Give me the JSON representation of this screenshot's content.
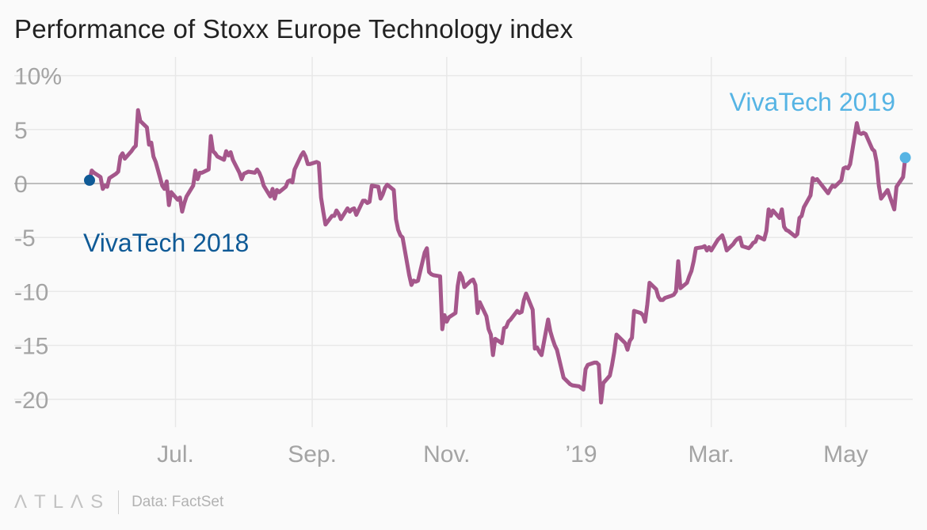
{
  "title": "Performance of Stoxx Europe Technology index",
  "footer": {
    "logo": "ΛTLΛS",
    "source": "Data: FactSet"
  },
  "colors": {
    "line": "#a5578b",
    "start_marker": "#0f5a96",
    "end_marker": "#56b4e4",
    "grid": "#e8e8e8",
    "zero_line": "#9a9a9a"
  },
  "chart_data": {
    "type": "line",
    "title": "Performance of Stoxx Europe Technology index",
    "xlabel": "",
    "ylabel": "",
    "x_range": [
      "2018-05-23",
      "2019-05-17"
    ],
    "ylim": [
      -22,
      10
    ],
    "y_ticks": [
      10,
      5,
      0,
      -5,
      -10,
      -15,
      -20
    ],
    "y_tick_labels": [
      "10%",
      "5",
      "0",
      "-5",
      "-10",
      "-15",
      "-20"
    ],
    "x_ticks": [
      "2018-07-01",
      "2018-09-01",
      "2018-11-01",
      "2019-01-01",
      "2019-03-01",
      "2019-05-01"
    ],
    "x_tick_labels": [
      "Jul.",
      "Sep.",
      "Nov.",
      "’19",
      "Mar.",
      "May"
    ],
    "grid": true,
    "series": [
      {
        "points": [
          [
            "2018-05-23",
            0.3
          ],
          [
            "2018-05-24",
            1.2
          ],
          [
            "2018-05-25",
            1.0
          ],
          [
            "2018-05-28",
            0.6
          ],
          [
            "2018-05-29",
            -0.5
          ],
          [
            "2018-05-30",
            -0.2
          ],
          [
            "2018-05-31",
            -0.3
          ],
          [
            "2018-06-01",
            0.5
          ],
          [
            "2018-06-04",
            0.9
          ],
          [
            "2018-06-05",
            1.1
          ],
          [
            "2018-06-06",
            2.5
          ],
          [
            "2018-06-07",
            2.8
          ],
          [
            "2018-06-08",
            2.3
          ],
          [
            "2018-06-11",
            3.0
          ],
          [
            "2018-06-12",
            3.3
          ],
          [
            "2018-06-13",
            3.5
          ],
          [
            "2018-06-14",
            6.8
          ],
          [
            "2018-06-15",
            5.8
          ],
          [
            "2018-06-18",
            5.2
          ],
          [
            "2018-06-19",
            3.6
          ],
          [
            "2018-06-20",
            3.8
          ],
          [
            "2018-06-21",
            2.5
          ],
          [
            "2018-06-22",
            2.0
          ],
          [
            "2018-06-25",
            -0.2
          ],
          [
            "2018-06-26",
            -0.5
          ],
          [
            "2018-06-27",
            0.2
          ],
          [
            "2018-06-28",
            -2.0
          ],
          [
            "2018-06-29",
            -0.8
          ],
          [
            "2018-07-02",
            -1.5
          ],
          [
            "2018-07-03",
            -1.3
          ],
          [
            "2018-07-04",
            -2.6
          ],
          [
            "2018-07-05",
            -1.8
          ],
          [
            "2018-07-06",
            -1.2
          ],
          [
            "2018-07-09",
            -0.2
          ],
          [
            "2018-07-10",
            1.2
          ],
          [
            "2018-07-11",
            0.4
          ],
          [
            "2018-07-12",
            1.0
          ],
          [
            "2018-07-13",
            1.0
          ],
          [
            "2018-07-16",
            1.3
          ],
          [
            "2018-07-17",
            4.4
          ],
          [
            "2018-07-18",
            3.0
          ],
          [
            "2018-07-19",
            2.8
          ],
          [
            "2018-07-20",
            2.5
          ],
          [
            "2018-07-23",
            2.2
          ],
          [
            "2018-07-24",
            3.0
          ],
          [
            "2018-07-25",
            2.6
          ],
          [
            "2018-07-26",
            2.9
          ],
          [
            "2018-07-27",
            2.2
          ],
          [
            "2018-07-30",
            1.0
          ],
          [
            "2018-07-31",
            0.4
          ],
          [
            "2018-08-01",
            0.9
          ],
          [
            "2018-08-02",
            1.0
          ],
          [
            "2018-08-03",
            1.1
          ],
          [
            "2018-08-06",
            1.0
          ],
          [
            "2018-08-07",
            1.3
          ],
          [
            "2018-08-08",
            1.0
          ],
          [
            "2018-08-09",
            0.5
          ],
          [
            "2018-08-10",
            -0.2
          ],
          [
            "2018-08-13",
            -1.2
          ],
          [
            "2018-08-14",
            -0.5
          ],
          [
            "2018-08-15",
            -1.4
          ],
          [
            "2018-08-16",
            -0.6
          ],
          [
            "2018-08-17",
            -0.8
          ],
          [
            "2018-08-20",
            -0.3
          ],
          [
            "2018-08-21",
            0.2
          ],
          [
            "2018-08-22",
            0.3
          ],
          [
            "2018-08-23",
            0.1
          ],
          [
            "2018-08-24",
            1.3
          ],
          [
            "2018-08-27",
            2.6
          ],
          [
            "2018-08-28",
            2.9
          ],
          [
            "2018-08-29",
            2.5
          ],
          [
            "2018-08-30",
            1.8
          ],
          [
            "2018-08-31",
            1.8
          ],
          [
            "2018-09-03",
            2.0
          ],
          [
            "2018-09-04",
            1.9
          ],
          [
            "2018-09-05",
            -1.3
          ],
          [
            "2018-09-06",
            -2.6
          ],
          [
            "2018-09-07",
            -3.8
          ],
          [
            "2018-09-10",
            -3.0
          ],
          [
            "2018-09-11",
            -3.0
          ],
          [
            "2018-09-12",
            -2.5
          ],
          [
            "2018-09-13",
            -2.8
          ],
          [
            "2018-09-14",
            -3.3
          ],
          [
            "2018-09-17",
            -2.3
          ],
          [
            "2018-09-18",
            -2.6
          ],
          [
            "2018-09-19",
            -2.4
          ],
          [
            "2018-09-20",
            -2.3
          ],
          [
            "2018-09-21",
            -2.9
          ],
          [
            "2018-09-24",
            -1.6
          ],
          [
            "2018-09-25",
            -1.6
          ],
          [
            "2018-09-26",
            -1.8
          ],
          [
            "2018-09-27",
            -1.7
          ],
          [
            "2018-09-28",
            -0.2
          ],
          [
            "2018-10-01",
            -0.3
          ],
          [
            "2018-10-02",
            -1.4
          ],
          [
            "2018-10-03",
            -1.0
          ],
          [
            "2018-10-04",
            -0.4
          ],
          [
            "2018-10-05",
            -0.1
          ],
          [
            "2018-10-08",
            -0.6
          ],
          [
            "2018-10-09",
            -3.3
          ],
          [
            "2018-10-10",
            -4.3
          ],
          [
            "2018-10-11",
            -4.8
          ],
          [
            "2018-10-12",
            -5.0
          ],
          [
            "2018-10-15",
            -8.5
          ],
          [
            "2018-10-16",
            -9.4
          ],
          [
            "2018-10-17",
            -9.0
          ],
          [
            "2018-10-18",
            -9.1
          ],
          [
            "2018-10-19",
            -9.0
          ],
          [
            "2018-10-22",
            -6.4
          ],
          [
            "2018-10-23",
            -6.0
          ],
          [
            "2018-10-24",
            -8.2
          ],
          [
            "2018-10-25",
            -8.4
          ],
          [
            "2018-10-26",
            -8.5
          ],
          [
            "2018-10-29",
            -8.6
          ],
          [
            "2018-10-30",
            -13.5
          ],
          [
            "2018-10-31",
            -12.2
          ],
          [
            "2018-11-01",
            -12.8
          ],
          [
            "2018-11-02",
            -12.4
          ],
          [
            "2018-11-05",
            -12.0
          ],
          [
            "2018-11-06",
            -9.5
          ],
          [
            "2018-11-07",
            -8.3
          ],
          [
            "2018-11-08",
            -8.7
          ],
          [
            "2018-11-09",
            -9.6
          ],
          [
            "2018-11-12",
            -9.0
          ],
          [
            "2018-11-13",
            -8.9
          ],
          [
            "2018-11-14",
            -9.4
          ],
          [
            "2018-11-15",
            -12.0
          ],
          [
            "2018-11-16",
            -11.0
          ],
          [
            "2018-11-19",
            -12.3
          ],
          [
            "2018-11-20",
            -13.5
          ],
          [
            "2018-11-21",
            -14.0
          ],
          [
            "2018-11-22",
            -15.9
          ],
          [
            "2018-11-23",
            -14.4
          ],
          [
            "2018-11-26",
            -14.8
          ],
          [
            "2018-11-27",
            -13.4
          ],
          [
            "2018-11-28",
            -13.3
          ],
          [
            "2018-11-29",
            -12.8
          ],
          [
            "2018-11-30",
            -12.6
          ],
          [
            "2018-12-03",
            -11.8
          ],
          [
            "2018-12-04",
            -12.0
          ],
          [
            "2018-12-05",
            -11.9
          ],
          [
            "2018-12-06",
            -10.8
          ],
          [
            "2018-12-07",
            -10.2
          ],
          [
            "2018-12-10",
            -11.7
          ],
          [
            "2018-12-11",
            -15.3
          ],
          [
            "2018-12-12",
            -15.2
          ],
          [
            "2018-12-13",
            -15.6
          ],
          [
            "2018-12-14",
            -15.9
          ],
          [
            "2018-12-17",
            -12.6
          ],
          [
            "2018-12-18",
            -13.7
          ],
          [
            "2018-12-19",
            -14.4
          ],
          [
            "2018-12-20",
            -15.0
          ],
          [
            "2018-12-21",
            -15.4
          ],
          [
            "2018-12-24",
            -18.0
          ],
          [
            "2018-12-27",
            -18.6
          ],
          [
            "2018-12-28",
            -18.7
          ],
          [
            "2018-12-31",
            -18.8
          ],
          [
            "2019-01-02",
            -19.1
          ],
          [
            "2019-01-03",
            -17.2
          ],
          [
            "2019-01-04",
            -16.8
          ],
          [
            "2019-01-07",
            -16.6
          ],
          [
            "2019-01-08",
            -16.6
          ],
          [
            "2019-01-09",
            -16.8
          ],
          [
            "2019-01-10",
            -20.3
          ],
          [
            "2019-01-11",
            -18.5
          ],
          [
            "2019-01-14",
            -17.8
          ],
          [
            "2019-01-15",
            -16.8
          ],
          [
            "2019-01-16",
            -15.6
          ],
          [
            "2019-01-17",
            -14.0
          ],
          [
            "2019-01-18",
            -14.2
          ],
          [
            "2019-01-21",
            -14.8
          ],
          [
            "2019-01-22",
            -15.4
          ],
          [
            "2019-01-23",
            -14.6
          ],
          [
            "2019-01-24",
            -14.3
          ],
          [
            "2019-01-25",
            -11.8
          ],
          [
            "2019-01-28",
            -12.0
          ],
          [
            "2019-01-29",
            -12.2
          ],
          [
            "2019-01-30",
            -12.8
          ],
          [
            "2019-01-31",
            -11.2
          ],
          [
            "2019-02-01",
            -9.2
          ],
          [
            "2019-02-04",
            -9.8
          ],
          [
            "2019-02-05",
            -10.5
          ],
          [
            "2019-02-06",
            -10.8
          ],
          [
            "2019-02-07",
            -10.8
          ],
          [
            "2019-02-08",
            -10.6
          ],
          [
            "2019-02-11",
            -10.4
          ],
          [
            "2019-02-12",
            -10.3
          ],
          [
            "2019-02-13",
            -10.0
          ],
          [
            "2019-02-14",
            -7.2
          ],
          [
            "2019-02-15",
            -9.7
          ],
          [
            "2019-02-18",
            -9.2
          ],
          [
            "2019-02-19",
            -8.6
          ],
          [
            "2019-02-20",
            -8.1
          ],
          [
            "2019-02-21",
            -7.2
          ],
          [
            "2019-02-22",
            -6.0
          ],
          [
            "2019-02-25",
            -5.9
          ],
          [
            "2019-02-26",
            -5.8
          ],
          [
            "2019-02-27",
            -6.2
          ],
          [
            "2019-02-28",
            -5.9
          ],
          [
            "2019-03-01",
            -6.2
          ],
          [
            "2019-03-04",
            -5.2
          ],
          [
            "2019-03-05",
            -5.0
          ],
          [
            "2019-03-06",
            -4.8
          ],
          [
            "2019-03-07",
            -5.4
          ],
          [
            "2019-03-08",
            -6.2
          ],
          [
            "2019-03-11",
            -5.6
          ],
          [
            "2019-03-12",
            -5.3
          ],
          [
            "2019-03-13",
            -5.1
          ],
          [
            "2019-03-14",
            -5.0
          ],
          [
            "2019-03-15",
            -5.8
          ],
          [
            "2019-03-18",
            -6.0
          ],
          [
            "2019-03-19",
            -5.8
          ],
          [
            "2019-03-20",
            -5.5
          ],
          [
            "2019-03-21",
            -5.4
          ],
          [
            "2019-03-22",
            -4.9
          ],
          [
            "2019-03-25",
            -5.2
          ],
          [
            "2019-03-26",
            -4.4
          ],
          [
            "2019-03-27",
            -2.4
          ],
          [
            "2019-03-28",
            -3.0
          ],
          [
            "2019-03-29",
            -2.5
          ],
          [
            "2019-04-01",
            -3.2
          ],
          [
            "2019-04-02",
            -2.4
          ],
          [
            "2019-04-03",
            -4.0
          ],
          [
            "2019-04-04",
            -4.3
          ],
          [
            "2019-04-05",
            -4.4
          ],
          [
            "2019-04-08",
            -4.9
          ],
          [
            "2019-04-09",
            -4.7
          ],
          [
            "2019-04-10",
            -3.2
          ],
          [
            "2019-04-11",
            -3.0
          ],
          [
            "2019-04-12",
            -2.2
          ],
          [
            "2019-04-15",
            -1.1
          ],
          [
            "2019-04-16",
            0.5
          ],
          [
            "2019-04-17",
            0.3
          ],
          [
            "2019-04-18",
            0.4
          ],
          [
            "2019-04-23",
            -0.9
          ],
          [
            "2019-04-24",
            -0.5
          ],
          [
            "2019-04-25",
            -0.2
          ],
          [
            "2019-04-26",
            -0.3
          ],
          [
            "2019-04-29",
            0.3
          ],
          [
            "2019-04-30",
            1.4
          ],
          [
            "2019-05-01",
            1.5
          ],
          [
            "2019-05-02",
            1.4
          ],
          [
            "2019-05-03",
            1.8
          ],
          [
            "2019-05-06",
            5.6
          ],
          [
            "2019-05-07",
            4.7
          ],
          [
            "2019-05-08",
            4.6
          ],
          [
            "2019-05-09",
            4.7
          ],
          [
            "2019-05-10",
            4.6
          ],
          [
            "2019-05-13",
            3.2
          ],
          [
            "2019-05-14",
            3.0
          ],
          [
            "2019-05-15",
            2.0
          ],
          [
            "2019-05-16",
            -0.2
          ],
          [
            "2019-05-17",
            -1.4
          ],
          [
            "2019-05-20",
            -0.6
          ],
          [
            "2019-05-21",
            -1.2
          ],
          [
            "2019-05-22",
            -1.8
          ],
          [
            "2019-05-23",
            -2.4
          ],
          [
            "2019-05-24",
            -0.3
          ],
          [
            "2019-05-27",
            0.6
          ],
          [
            "2019-05-28",
            2.4
          ]
        ]
      }
    ],
    "annotations": [
      {
        "label": "VivaTech 2018",
        "x": "2018-05-23",
        "y": 0.3,
        "color": "#0f5a96"
      },
      {
        "label": "VivaTech 2019",
        "x": "2019-05-28",
        "y": 2.4,
        "color": "#56b4e4"
      }
    ]
  }
}
